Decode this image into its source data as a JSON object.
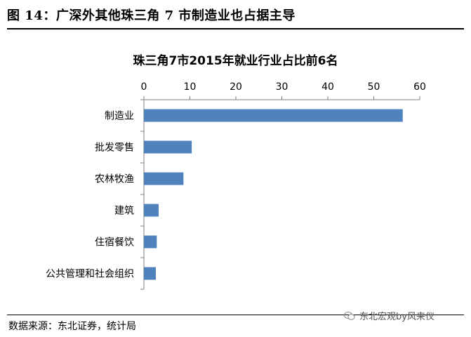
{
  "figure_title": "图 14：广深外其他珠三角 7 市制造业也占据主导",
  "source_text": "数据来源：东北证券，统计局",
  "watermark": "东北宏观by风来仪",
  "colors": {
    "bar": "#4F81BD",
    "axis": "#7f7f7f"
  },
  "chart_data": {
    "type": "bar",
    "orientation": "horizontal",
    "title": "珠三角7市2015年就业行业占比前6名",
    "categories": [
      "制造业",
      "批发零售",
      "农林牧渔",
      "建筑",
      "住宿餐饮",
      "公共管理和社会组织"
    ],
    "values": [
      56.3,
      10.4,
      8.6,
      3.2,
      2.8,
      2.6
    ],
    "xlim": [
      0,
      60
    ],
    "xticks": [
      "0",
      "10",
      "20",
      "30",
      "40",
      "50",
      "60"
    ],
    "xaxis_position": "top",
    "grid": false,
    "legend": "none"
  }
}
